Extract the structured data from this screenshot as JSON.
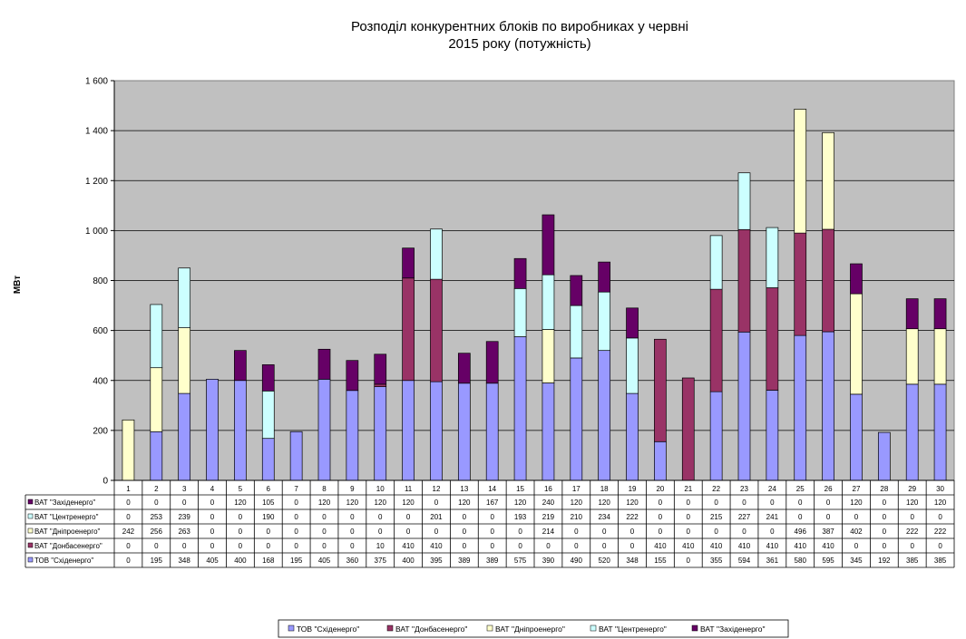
{
  "chart_data": {
    "type": "bar",
    "stacked": true,
    "title_lines": [
      "Розподіл конкурентних  блоків по виробниках  у червні",
      "2015 року  (потужність)"
    ],
    "ylabel": "МВт",
    "ylim": [
      0,
      1600
    ],
    "yticks": [
      "0",
      "200",
      "400",
      "600",
      "800",
      "1 000",
      "1 200",
      "1 400",
      "1 600"
    ],
    "ytick_values": [
      0,
      200,
      400,
      600,
      800,
      1000,
      1200,
      1400,
      1600
    ],
    "categories": [
      "1",
      "2",
      "3",
      "4",
      "5",
      "6",
      "7",
      "8",
      "9",
      "10",
      "11",
      "12",
      "13",
      "14",
      "15",
      "16",
      "17",
      "18",
      "19",
      "20",
      "21",
      "22",
      "23",
      "24",
      "25",
      "26",
      "27",
      "28",
      "29",
      "30"
    ],
    "grid": true,
    "legend_position": "bottom",
    "series": [
      {
        "name": "ТОВ \"Східенерго\"",
        "color": "#9999FF",
        "values": [
          0,
          195,
          348,
          405,
          400,
          168,
          195,
          405,
          360,
          375,
          400,
          395,
          389,
          389,
          575,
          390,
          490,
          520,
          348,
          155,
          0,
          355,
          594,
          361,
          580,
          595,
          345,
          192,
          385,
          385
        ]
      },
      {
        "name": "ВАТ \"Донбасенерго\"",
        "color": "#993366",
        "values": [
          0,
          0,
          0,
          0,
          0,
          0,
          0,
          0,
          0,
          10,
          410,
          410,
          0,
          0,
          0,
          0,
          0,
          0,
          0,
          410,
          410,
          410,
          410,
          410,
          410,
          410,
          0,
          0,
          0,
          0
        ]
      },
      {
        "name": "ВАТ \"Дніпроенерго\"",
        "color": "#FFFFCC",
        "values": [
          242,
          256,
          263,
          0,
          0,
          0,
          0,
          0,
          0,
          0,
          0,
          0,
          0,
          0,
          0,
          214,
          0,
          0,
          0,
          0,
          0,
          0,
          0,
          0,
          496,
          387,
          402,
          0,
          222,
          222
        ]
      },
      {
        "name": "ВАТ \"Центренерго\"",
        "color": "#CCFFFF",
        "values": [
          0,
          253,
          239,
          0,
          0,
          190,
          0,
          0,
          0,
          0,
          0,
          201,
          0,
          0,
          193,
          219,
          210,
          234,
          222,
          0,
          0,
          215,
          227,
          241,
          0,
          0,
          0,
          0,
          0,
          0
        ]
      },
      {
        "name": "ВАТ \"Західенерго\"",
        "color": "#660066",
        "values": [
          0,
          0,
          0,
          0,
          120,
          105,
          0,
          120,
          120,
          120,
          120,
          0,
          120,
          167,
          120,
          240,
          120,
          120,
          120,
          0,
          0,
          0,
          0,
          0,
          0,
          0,
          120,
          0,
          120,
          120
        ]
      }
    ],
    "table_row_order": [
      4,
      3,
      2,
      1,
      0
    ]
  }
}
